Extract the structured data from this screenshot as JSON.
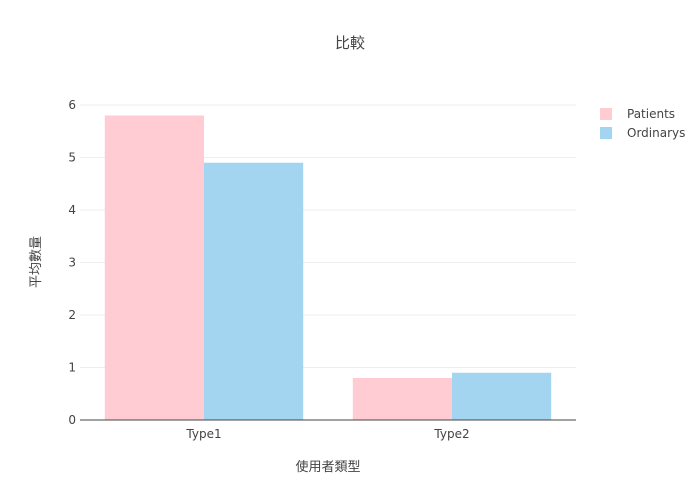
{
  "chart_data": {
    "type": "bar",
    "title": "比較",
    "xlabel": "使用者類型",
    "ylabel": "平均數量",
    "categories": [
      "Type1",
      "Type2"
    ],
    "series": [
      {
        "name": "Patients",
        "values": [
          5.8,
          0.8
        ],
        "color": "#ffccd3"
      },
      {
        "name": "Ordinarys",
        "values": [
          4.9,
          0.9
        ],
        "color": "#a3d5f1"
      }
    ],
    "ylim": [
      0,
      6
    ],
    "yticks": [
      0,
      1,
      2,
      3,
      4,
      5,
      6
    ],
    "grid": true,
    "legend_position": "top-right"
  }
}
